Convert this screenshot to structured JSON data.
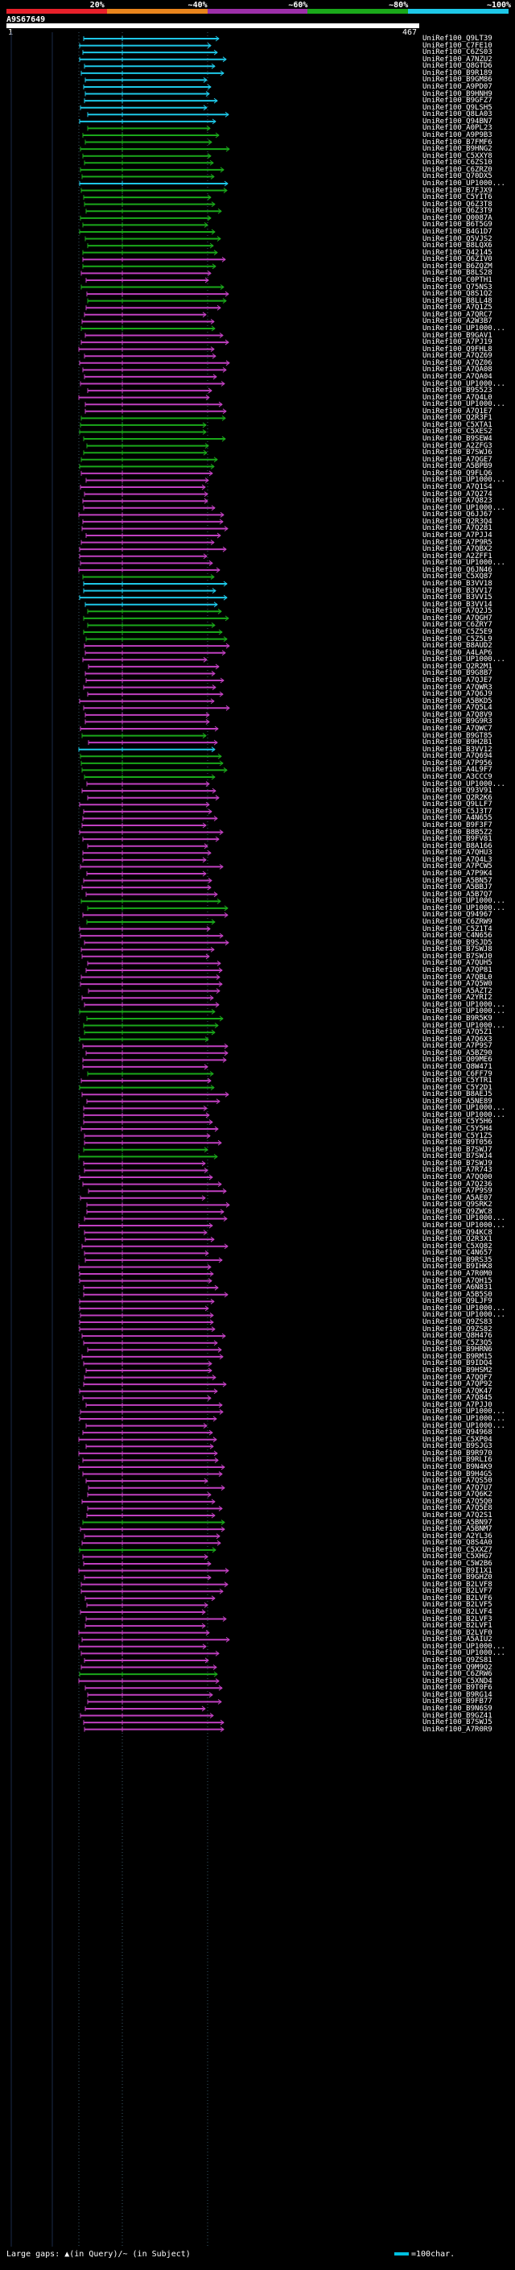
{
  "scale": {
    "segments": [
      {
        "label": "20%",
        "color": "#e8202a"
      },
      {
        "label": "~40%",
        "color": "#e8841c"
      },
      {
        "label": "~60%",
        "color": "#9c2fa8"
      },
      {
        "label": "~80%",
        "color": "#1aa81a"
      },
      {
        "label": "~100%",
        "color": "#1ec8e8"
      }
    ]
  },
  "query": {
    "id": "A9S67649",
    "start": "1",
    "end": "467"
  },
  "colors": {
    "cyan": "#1ec8e8",
    "green": "#1aa81a",
    "magenta": "#c040c0",
    "grid": "#1a2a48",
    "guide": "#3a5a6a"
  },
  "hits": [
    {
      "label": "UniRef100_Q9LT39",
      "c": "cyan"
    },
    {
      "label": "UniRef100_C7FE10",
      "c": "cyan"
    },
    {
      "label": "UniRef100_C6ZS03",
      "c": "cyan"
    },
    {
      "label": "UniRef100_A7NZU2",
      "c": "cyan"
    },
    {
      "label": "UniRef100_Q8GTD6",
      "c": "cyan"
    },
    {
      "label": "UniRef100_B9R189",
      "c": "cyan"
    },
    {
      "label": "UniRef100_B9GM86",
      "c": "cyan"
    },
    {
      "label": "UniRef100_A9PD07",
      "c": "cyan"
    },
    {
      "label": "UniRef100_B9HNH9",
      "c": "cyan"
    },
    {
      "label": "UniRef100_B9GFZ7",
      "c": "cyan"
    },
    {
      "label": "UniRef100_Q9LSH5",
      "c": "cyan"
    },
    {
      "label": "UniRef100_Q8LA03",
      "c": "cyan"
    },
    {
      "label": "UniRef100_Q94BN7",
      "c": "cyan"
    },
    {
      "label": "UniRef100_A0PL23",
      "c": "green"
    },
    {
      "label": "UniRef100_A9P9B3",
      "c": "green"
    },
    {
      "label": "UniRef100_B7FMF6",
      "c": "green"
    },
    {
      "label": "UniRef100_B9HNG2",
      "c": "green"
    },
    {
      "label": "UniRef100_C5XXY8",
      "c": "green"
    },
    {
      "label": "UniRef100_C6ZS10",
      "c": "green"
    },
    {
      "label": "UniRef100_C6ZRZ0",
      "c": "green"
    },
    {
      "label": "UniRef100_Q70DX5",
      "c": "green"
    },
    {
      "label": "UniRef100_UP1000...",
      "c": "cyan"
    },
    {
      "label": "UniRef100_B7FJX9",
      "c": "green"
    },
    {
      "label": "UniRef100_C5YIT6",
      "c": "green"
    },
    {
      "label": "UniRef100_Q6Z3T8",
      "c": "green"
    },
    {
      "label": "UniRef100_Q6Z3T9",
      "c": "green"
    },
    {
      "label": "UniRef100_Q0087A",
      "c": "green"
    },
    {
      "label": "UniRef100_B6T5G9",
      "c": "green"
    },
    {
      "label": "UniRef100_B4G1D7",
      "c": "green"
    },
    {
      "label": "UniRef100_Q5VJS2",
      "c": "green"
    },
    {
      "label": "UniRef100_B8LQX6",
      "c": "green"
    },
    {
      "label": "UniRef100_Q42145",
      "c": "green"
    },
    {
      "label": "UniRef100_Q6ZIV0",
      "c": "magenta"
    },
    {
      "label": "UniRef100_B6ZQZM",
      "c": "green"
    },
    {
      "label": "UniRef100_B8LS28",
      "c": "magenta"
    },
    {
      "label": "UniRef100_C0PTH1",
      "c": "magenta"
    },
    {
      "label": "UniRef100_Q75NS3",
      "c": "green"
    },
    {
      "label": "UniRef100_Q8S1Q2",
      "c": "magenta"
    },
    {
      "label": "UniRef100_B8LL48",
      "c": "green"
    },
    {
      "label": "UniRef100_A7Q1Z5",
      "c": "magenta"
    },
    {
      "label": "UniRef100_A7QRC7",
      "c": "magenta"
    },
    {
      "label": "UniRef100_A2W3B7",
      "c": "magenta"
    },
    {
      "label": "UniRef100_UP1000...",
      "c": "green"
    },
    {
      "label": "UniRef100_B9GAV1",
      "c": "magenta"
    },
    {
      "label": "UniRef100_A7PJ19",
      "c": "magenta"
    },
    {
      "label": "UniRef100_Q9FHL8",
      "c": "magenta"
    },
    {
      "label": "UniRef100_A7QZ69",
      "c": "magenta"
    },
    {
      "label": "UniRef100_A7QZ06",
      "c": "magenta"
    },
    {
      "label": "UniRef100_A7QA08",
      "c": "magenta"
    },
    {
      "label": "UniRef100_A7QA04",
      "c": "magenta"
    },
    {
      "label": "UniRef100_UP1000...",
      "c": "magenta"
    },
    {
      "label": "UniRef100_B9S523",
      "c": "magenta"
    },
    {
      "label": "UniRef100_A7Q4L0",
      "c": "magenta"
    },
    {
      "label": "UniRef100_UP1000...",
      "c": "magenta"
    },
    {
      "label": "UniRef100_A7Q1E7",
      "c": "magenta"
    },
    {
      "label": "UniRef100_Q2R3F1",
      "c": "green"
    },
    {
      "label": "UniRef100_C5XTA1",
      "c": "green"
    },
    {
      "label": "UniRef100_C5XES2",
      "c": "green"
    },
    {
      "label": "UniRef100_B9SEW4",
      "c": "green"
    },
    {
      "label": "UniRef100_A2ZFG3",
      "c": "green"
    },
    {
      "label": "UniRef100_B7SWJ6",
      "c": "green"
    },
    {
      "label": "UniRef100_A7QGE7",
      "c": "green"
    },
    {
      "label": "UniRef100_A5BPB9",
      "c": "green"
    },
    {
      "label": "UniRef100_Q9FLQ6",
      "c": "magenta"
    },
    {
      "label": "UniRef100_UP1000...",
      "c": "magenta"
    },
    {
      "label": "UniRef100_A7Q1S4",
      "c": "magenta"
    },
    {
      "label": "UniRef100_A7Q274",
      "c": "magenta"
    },
    {
      "label": "UniRef100_A7Q823",
      "c": "magenta"
    },
    {
      "label": "UniRef100_UP1000...",
      "c": "magenta"
    },
    {
      "label": "UniRef100_Q6JJ67",
      "c": "magenta"
    },
    {
      "label": "UniRef100_Q2R3Q4",
      "c": "magenta"
    },
    {
      "label": "UniRef100_A7Q281",
      "c": "magenta"
    },
    {
      "label": "UniRef100_A7PJJ4",
      "c": "magenta"
    },
    {
      "label": "UniRef100_A7P9R5",
      "c": "magenta"
    },
    {
      "label": "UniRef100_A7QBX2",
      "c": "magenta"
    },
    {
      "label": "UniRef100_A2ZFF1",
      "c": "magenta"
    },
    {
      "label": "UniRef100_UP1000...",
      "c": "magenta"
    },
    {
      "label": "UniRef100_Q6JN46",
      "c": "magenta"
    },
    {
      "label": "UniRef100_C5XQ87",
      "c": "green"
    },
    {
      "label": "UniRef100_B3VV18",
      "c": "cyan"
    },
    {
      "label": "UniRef100_B3VV17",
      "c": "cyan"
    },
    {
      "label": "UniRef100_B3VV15",
      "c": "cyan"
    },
    {
      "label": "UniRef100_B3VV14",
      "c": "cyan"
    },
    {
      "label": "UniRef100_A7Q2J5",
      "c": "green"
    },
    {
      "label": "UniRef100_A7QGH7",
      "c": "green"
    },
    {
      "label": "UniRef100_C6ZRY7",
      "c": "green"
    },
    {
      "label": "UniRef100_C5Z5E9",
      "c": "green"
    },
    {
      "label": "UniRef100_C5Z5L9",
      "c": "green"
    },
    {
      "label": "UniRef100_B8AUD2",
      "c": "magenta"
    },
    {
      "label": "UniRef100_A4LAP6",
      "c": "magenta"
    },
    {
      "label": "UniRef100_UP1000...",
      "c": "magenta"
    },
    {
      "label": "UniRef100_Q2R2M1",
      "c": "magenta"
    },
    {
      "label": "UniRef100_B9G8B7",
      "c": "magenta"
    },
    {
      "label": "UniRef100_A7QJE7",
      "c": "magenta"
    },
    {
      "label": "UniRef100_A7QWR3",
      "c": "magenta"
    },
    {
      "label": "UniRef100_A7Q6J9",
      "c": "magenta"
    },
    {
      "label": "UniRef100_A5BKD5",
      "c": "magenta"
    },
    {
      "label": "UniRef100_A7Q5L4",
      "c": "magenta"
    },
    {
      "label": "UniRef100_A7Q8V9",
      "c": "magenta"
    },
    {
      "label": "UniRef100_B9G9R3",
      "c": "magenta"
    },
    {
      "label": "UniRef100_A7QWC7",
      "c": "magenta"
    },
    {
      "label": "UniRef100_B9GT85",
      "c": "green"
    },
    {
      "label": "UniRef100_B9H2B1",
      "c": "magenta"
    },
    {
      "label": "UniRef100_B3VV12",
      "c": "cyan"
    },
    {
      "label": "UniRef100_A7Q694",
      "c": "green"
    },
    {
      "label": "UniRef100_A7P956",
      "c": "green"
    },
    {
      "label": "UniRef100_A4L9F7",
      "c": "green"
    },
    {
      "label": "UniRef100_A3CCC9",
      "c": "green"
    },
    {
      "label": "UniRef100_UP1000...",
      "c": "magenta"
    },
    {
      "label": "UniRef100_Q93V91",
      "c": "magenta"
    },
    {
      "label": "UniRef100_Q2R2K6",
      "c": "magenta"
    },
    {
      "label": "UniRef100_Q9LLF7",
      "c": "magenta"
    },
    {
      "label": "UniRef100_C5J3T7",
      "c": "magenta"
    },
    {
      "label": "UniRef100_A4N655",
      "c": "magenta"
    },
    {
      "label": "UniRef100_B9F3F7",
      "c": "magenta"
    },
    {
      "label": "UniRef100_B8B5Z2",
      "c": "magenta"
    },
    {
      "label": "UniRef100_B9FV81",
      "c": "magenta"
    },
    {
      "label": "UniRef100_B8A166",
      "c": "magenta"
    },
    {
      "label": "UniRef100_A7QHU3",
      "c": "magenta"
    },
    {
      "label": "UniRef100_A7Q4L3",
      "c": "magenta"
    },
    {
      "label": "UniRef100_A7PCW5",
      "c": "magenta"
    },
    {
      "label": "UniRef100_A7P9K4",
      "c": "magenta"
    },
    {
      "label": "UniRef100_A5BN57",
      "c": "magenta"
    },
    {
      "label": "UniRef100_A5BBJ7",
      "c": "magenta"
    },
    {
      "label": "UniRef100_A5B7Q7",
      "c": "magenta"
    },
    {
      "label": "UniRef100_UP1000...",
      "c": "green"
    },
    {
      "label": "UniRef100_UP1000...",
      "c": "green"
    },
    {
      "label": "UniRef100_Q94967",
      "c": "magenta"
    },
    {
      "label": "UniRef100_C6ZRW9",
      "c": "green"
    },
    {
      "label": "UniRef100_C5Z1T4",
      "c": "magenta"
    },
    {
      "label": "UniRef100_C4N656",
      "c": "magenta"
    },
    {
      "label": "UniRef100_B9SJD5",
      "c": "magenta"
    },
    {
      "label": "UniRef100_B7SWJ8",
      "c": "magenta"
    },
    {
      "label": "UniRef100_B7SWJ0",
      "c": "magenta"
    },
    {
      "label": "UniRef100_A7QUH5",
      "c": "magenta"
    },
    {
      "label": "UniRef100_A7QP81",
      "c": "magenta"
    },
    {
      "label": "UniRef100_A7QBL0",
      "c": "magenta"
    },
    {
      "label": "UniRef100_A7Q5W0",
      "c": "magenta"
    },
    {
      "label": "UniRef100_A5AZT2",
      "c": "magenta"
    },
    {
      "label": "UniRef100_A2YRI2",
      "c": "magenta"
    },
    {
      "label": "UniRef100_UP1000...",
      "c": "magenta"
    },
    {
      "label": "UniRef100_UP1000...",
      "c": "green"
    },
    {
      "label": "UniRef100_B9R5K9",
      "c": "green"
    },
    {
      "label": "UniRef100_UP1000...",
      "c": "green"
    },
    {
      "label": "UniRef100_A7Q5Z1",
      "c": "green"
    },
    {
      "label": "UniRef100_A7Q6X3",
      "c": "green"
    },
    {
      "label": "UniRef100_A7P9S7",
      "c": "magenta"
    },
    {
      "label": "UniRef100_A5BZ90",
      "c": "magenta"
    },
    {
      "label": "UniRef100_Q09ME6",
      "c": "magenta"
    },
    {
      "label": "UniRef100_Q8W471",
      "c": "magenta"
    },
    {
      "label": "UniRef100_C6FF79",
      "c": "green"
    },
    {
      "label": "UniRef100_C5YTR1",
      "c": "magenta"
    },
    {
      "label": "UniRef100_C5Y2D1",
      "c": "green"
    },
    {
      "label": "UniRef100_B8AEJ5",
      "c": "magenta"
    },
    {
      "label": "UniRef100_A5NE89",
      "c": "magenta"
    },
    {
      "label": "UniRef100_UP1000...",
      "c": "magenta"
    },
    {
      "label": "UniRef100_UP1000...",
      "c": "magenta"
    },
    {
      "label": "UniRef100_C5Y5H6",
      "c": "magenta"
    },
    {
      "label": "UniRef100_C5Y5H4",
      "c": "magenta"
    },
    {
      "label": "UniRef100_C5Y1Z5",
      "c": "magenta"
    },
    {
      "label": "UniRef100_B9T056",
      "c": "magenta"
    },
    {
      "label": "UniRef100_B7SWJ7",
      "c": "green"
    },
    {
      "label": "UniRef100_B7SWJ4",
      "c": "green"
    },
    {
      "label": "UniRef100_B7SWJ9",
      "c": "magenta"
    },
    {
      "label": "UniRef100_A7R743",
      "c": "magenta"
    },
    {
      "label": "UniRef100_A7QQ00",
      "c": "magenta"
    },
    {
      "label": "UniRef100_A7Q236",
      "c": "magenta"
    },
    {
      "label": "UniRef100_A7P9S9",
      "c": "magenta"
    },
    {
      "label": "UniRef100_A5AE07",
      "c": "magenta"
    },
    {
      "label": "UniRef100_Q9SRK2",
      "c": "magenta"
    },
    {
      "label": "UniRef100_Q9ZWC8",
      "c": "magenta"
    },
    {
      "label": "UniRef100_UP1000...",
      "c": "magenta"
    },
    {
      "label": "UniRef100_UP1000...",
      "c": "magenta"
    },
    {
      "label": "UniRef100_Q94KC8",
      "c": "magenta"
    },
    {
      "label": "UniRef100_Q2R3X1",
      "c": "magenta"
    },
    {
      "label": "UniRef100_C5XQ82",
      "c": "magenta"
    },
    {
      "label": "UniRef100_C4N657",
      "c": "magenta"
    },
    {
      "label": "UniRef100_B9RS35",
      "c": "magenta"
    },
    {
      "label": "UniRef100_B9IHK8",
      "c": "magenta"
    },
    {
      "label": "UniRef100_A7R0M0",
      "c": "magenta"
    },
    {
      "label": "UniRef100_A7QH15",
      "c": "magenta"
    },
    {
      "label": "UniRef100_A6N831",
      "c": "magenta"
    },
    {
      "label": "UniRef100_A5B5S0",
      "c": "magenta"
    },
    {
      "label": "UniRef100_Q9LJF9",
      "c": "magenta"
    },
    {
      "label": "UniRef100_UP1000...",
      "c": "magenta"
    },
    {
      "label": "UniRef100_UP1000...",
      "c": "magenta"
    },
    {
      "label": "UniRef100_Q9ZS83",
      "c": "magenta"
    },
    {
      "label": "UniRef100_Q9ZS82",
      "c": "magenta"
    },
    {
      "label": "UniRef100_Q8H476",
      "c": "magenta"
    },
    {
      "label": "UniRef100_C5Z3Q5",
      "c": "magenta"
    },
    {
      "label": "UniRef100_B9HRN6",
      "c": "magenta"
    },
    {
      "label": "UniRef100_B9RM15",
      "c": "magenta"
    },
    {
      "label": "UniRef100_B9IDQ4",
      "c": "magenta"
    },
    {
      "label": "UniRef100_B9HSM2",
      "c": "magenta"
    },
    {
      "label": "UniRef100_A7QQF7",
      "c": "magenta"
    },
    {
      "label": "UniRef100_A7QP92",
      "c": "magenta"
    },
    {
      "label": "UniRef100_A7QK47",
      "c": "magenta"
    },
    {
      "label": "UniRef100_A7Q845",
      "c": "magenta"
    },
    {
      "label": "UniRef100_A7PJJ0",
      "c": "magenta"
    },
    {
      "label": "UniRef100_UP1000...",
      "c": "magenta"
    },
    {
      "label": "UniRef100_UP1000...",
      "c": "magenta"
    },
    {
      "label": "UniRef100_UP1000...",
      "c": "magenta"
    },
    {
      "label": "UniRef100_Q94968",
      "c": "magenta"
    },
    {
      "label": "UniRef100_C5XP04",
      "c": "magenta"
    },
    {
      "label": "UniRef100_B9SJG3",
      "c": "magenta"
    },
    {
      "label": "UniRef100_B9R970",
      "c": "magenta"
    },
    {
      "label": "UniRef100_B9RLI6",
      "c": "magenta"
    },
    {
      "label": "UniRef100_B9N4K9",
      "c": "magenta"
    },
    {
      "label": "UniRef100_B9H4G5",
      "c": "magenta"
    },
    {
      "label": "UniRef100_A7QS50",
      "c": "magenta"
    },
    {
      "label": "UniRef100_A7Q7U7",
      "c": "magenta"
    },
    {
      "label": "UniRef100_A7Q6K2",
      "c": "magenta"
    },
    {
      "label": "UniRef100_A7Q5Q0",
      "c": "magenta"
    },
    {
      "label": "UniRef100_A7Q5E8",
      "c": "magenta"
    },
    {
      "label": "UniRef100_A7Q2S1",
      "c": "magenta"
    },
    {
      "label": "UniRef100_A5BN97",
      "c": "green"
    },
    {
      "label": "UniRef100_A5BNM7",
      "c": "magenta"
    },
    {
      "label": "UniRef100_A2YL36",
      "c": "magenta"
    },
    {
      "label": "UniRef100_Q8S4A0",
      "c": "magenta"
    },
    {
      "label": "UniRef100_C5XXZ7",
      "c": "green"
    },
    {
      "label": "UniRef100_C5XHG7",
      "c": "magenta"
    },
    {
      "label": "UniRef100_C5W2B6",
      "c": "magenta"
    },
    {
      "label": "UniRef100_B9I1X1",
      "c": "magenta"
    },
    {
      "label": "UniRef100_B9GHZ0",
      "c": "magenta"
    },
    {
      "label": "UniRef100_B2LVF8",
      "c": "magenta"
    },
    {
      "label": "UniRef100_B2LVF7",
      "c": "magenta"
    },
    {
      "label": "UniRef100_B2LVF6",
      "c": "magenta"
    },
    {
      "label": "UniRef100_B2LVF5",
      "c": "magenta"
    },
    {
      "label": "UniRef100_B2LVF4",
      "c": "magenta"
    },
    {
      "label": "UniRef100_B2LVF3",
      "c": "magenta"
    },
    {
      "label": "UniRef100_B2LVF1",
      "c": "magenta"
    },
    {
      "label": "UniRef100_B2LVF0",
      "c": "magenta"
    },
    {
      "label": "UniRef100_A5AIU2",
      "c": "magenta"
    },
    {
      "label": "UniRef100_UP1000...",
      "c": "magenta"
    },
    {
      "label": "UniRef100_UP1000...",
      "c": "magenta"
    },
    {
      "label": "UniRef100_Q9ZS81",
      "c": "magenta"
    },
    {
      "label": "UniRef100_Q9M9Q2",
      "c": "magenta"
    },
    {
      "label": "UniRef100_C6ZRW6",
      "c": "green"
    },
    {
      "label": "UniRef100_C5XND4",
      "c": "magenta"
    },
    {
      "label": "UniRef100_B9T0F6",
      "c": "magenta"
    },
    {
      "label": "UniRef100_B9RG14",
      "c": "magenta"
    },
    {
      "label": "UniRef100_B9FB77",
      "c": "magenta"
    },
    {
      "label": "UniRef100_B9N6S9",
      "c": "magenta"
    },
    {
      "label": "UniRef100_B9GZ41",
      "c": "magenta"
    },
    {
      "label": "UniRef100_B7SWJ5",
      "c": "magenta"
    },
    {
      "label": "UniRef100_A7R0R9",
      "c": "magenta"
    }
  ],
  "footer": {
    "text": "Large gaps: ▲(in Query)/~ (in Subject)"
  },
  "legend": {
    "text": "=100char."
  }
}
